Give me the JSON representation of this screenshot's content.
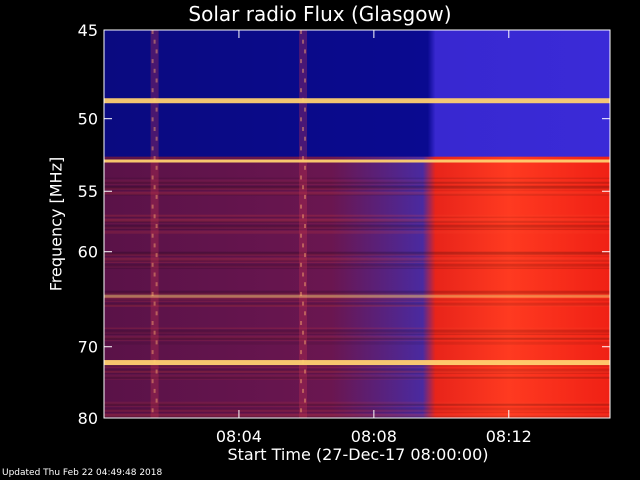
{
  "chart_data": {
    "type": "heatmap",
    "title": "Solar radio Flux (Glasgow)",
    "ylabel": "Frequency [MHz]",
    "xlabel": "Start Time (27-Dec-17 08:00:00)",
    "ylim": [
      45,
      80
    ],
    "xlim_minutes": [
      0,
      15
    ],
    "yticks": [
      45,
      50,
      55,
      60,
      70,
      80
    ],
    "ytick_labels": [
      "45",
      "50",
      "55",
      "60",
      "70",
      "80"
    ],
    "xticks_minutes": [
      4,
      8,
      12
    ],
    "xtick_labels": [
      "08:04",
      "08:08",
      "08:12"
    ],
    "intensity_change_minute": 9.8,
    "low_band_mhz": [
      45,
      52.5
    ],
    "bright_lines_mhz": [
      48.9,
      52.8,
      64.3,
      72.0
    ],
    "burst_streaks_minutes": [
      1.5,
      5.9
    ],
    "colors": {
      "low_before": "#0a0a8a",
      "low_after": "#3a2ad8",
      "body_before": "#6a1650",
      "body_after": "#ff2a1a",
      "line_bright": "#ffd070"
    }
  },
  "footer": "Updated Thu Feb 22 04:49:48 2018"
}
